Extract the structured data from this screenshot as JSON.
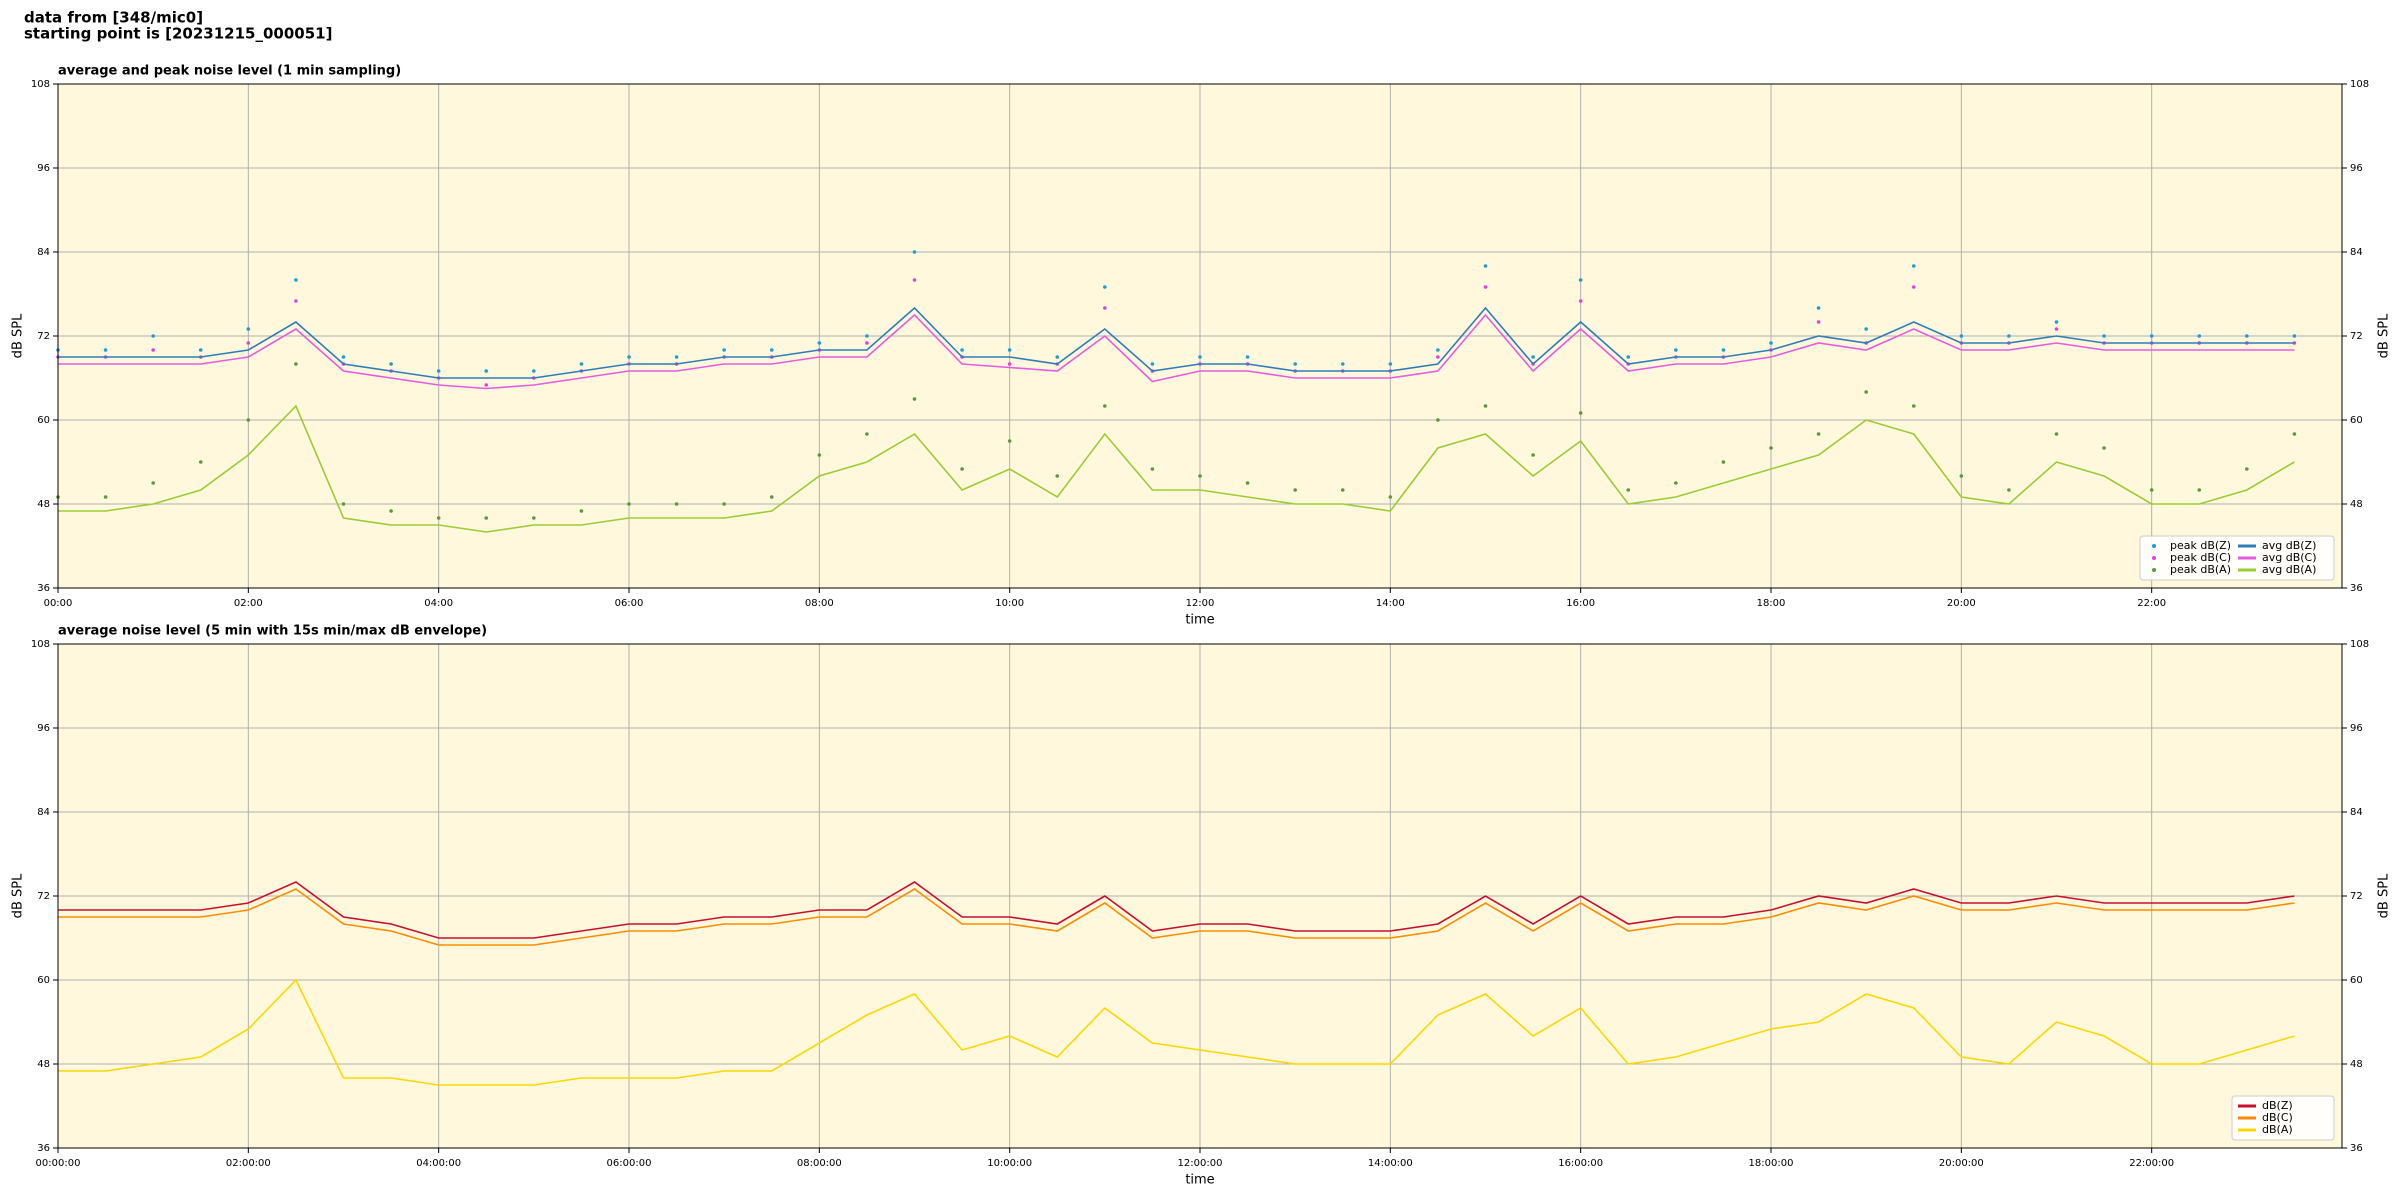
{
  "header": {
    "source": "data from [348/mic0]",
    "start": "starting point is [20231215_000051]"
  },
  "chart_data": [
    {
      "type": "mixed",
      "title": "average and peak noise level (1 min sampling)",
      "xlabel": "time",
      "ylabel": "dB SPL",
      "background": "#fff8dc",
      "grid": true,
      "legend": "lower right",
      "legend_columns": 2,
      "xlim": [
        0,
        24
      ],
      "ylim": [
        36,
        108
      ],
      "yticks": [
        36,
        48,
        60,
        72,
        84,
        96,
        108
      ],
      "xticks": [
        {
          "value": 0,
          "label": "00:00"
        },
        {
          "value": 2,
          "label": "02:00"
        },
        {
          "value": 4,
          "label": "04:00"
        },
        {
          "value": 6,
          "label": "06:00"
        },
        {
          "value": 8,
          "label": "08:00"
        },
        {
          "value": 10,
          "label": "10:00"
        },
        {
          "value": 12,
          "label": "12:00"
        },
        {
          "value": 14,
          "label": "14:00"
        },
        {
          "value": 16,
          "label": "16:00"
        },
        {
          "value": 18,
          "label": "18:00"
        },
        {
          "value": 20,
          "label": "20:00"
        },
        {
          "value": 22,
          "label": "22:00"
        }
      ],
      "x": [
        0,
        0.5,
        1,
        1.5,
        2,
        2.5,
        3,
        3.5,
        4,
        4.5,
        5,
        5.5,
        6,
        6.5,
        7,
        7.5,
        8,
        8.5,
        9,
        9.5,
        10,
        10.5,
        11,
        11.5,
        12,
        12.5,
        13,
        13.5,
        14,
        14.5,
        15,
        15.5,
        16,
        16.5,
        17,
        17.5,
        18,
        18.5,
        19,
        19.5,
        20,
        20.5,
        21,
        21.5,
        22,
        22.5,
        23,
        23.5
      ],
      "series": [
        {
          "name": "peak dB(Z)",
          "kind": "scatter",
          "color": "#1f9bd6",
          "values": [
            70,
            70,
            72,
            70,
            73,
            80,
            69,
            68,
            67,
            67,
            67,
            68,
            69,
            69,
            70,
            70,
            71,
            72,
            84,
            70,
            70,
            69,
            79,
            68,
            69,
            69,
            68,
            68,
            68,
            70,
            82,
            69,
            80,
            69,
            70,
            70,
            71,
            76,
            73,
            82,
            72,
            72,
            74,
            72,
            72,
            72,
            72,
            72
          ]
        },
        {
          "name": "peak dB(C)",
          "kind": "scatter",
          "color": "#e040e0",
          "values": [
            69,
            69,
            70,
            69,
            71,
            77,
            68,
            67,
            66,
            65,
            66,
            67,
            68,
            68,
            69,
            69,
            70,
            71,
            80,
            69,
            68,
            68,
            76,
            67,
            68,
            68,
            67,
            67,
            67,
            69,
            79,
            68,
            77,
            68,
            69,
            69,
            70,
            74,
            71,
            79,
            71,
            71,
            73,
            71,
            71,
            71,
            71,
            71
          ]
        },
        {
          "name": "peak dB(A)",
          "kind": "scatter",
          "color": "#5a9a3a",
          "values": [
            49,
            49,
            51,
            54,
            60,
            68,
            48,
            47,
            46,
            46,
            46,
            47,
            48,
            48,
            48,
            49,
            55,
            58,
            63,
            53,
            57,
            52,
            62,
            53,
            52,
            51,
            50,
            50,
            49,
            60,
            62,
            55,
            61,
            50,
            51,
            54,
            56,
            58,
            64,
            62,
            52,
            50,
            58,
            56,
            50,
            50,
            53,
            58
          ]
        },
        {
          "name": "avg dB(Z)",
          "kind": "line",
          "color": "#2e7db8",
          "values": [
            69,
            69,
            69,
            69,
            70,
            74,
            68,
            67,
            66,
            66,
            66,
            67,
            68,
            68,
            69,
            69,
            70,
            70,
            76,
            69,
            69,
            68,
            73,
            67,
            68,
            68,
            67,
            67,
            67,
            68,
            76,
            68,
            74,
            68,
            69,
            69,
            70,
            72,
            71,
            74,
            71,
            71,
            72,
            71,
            71,
            71,
            71,
            71
          ]
        },
        {
          "name": "avg dB(C)",
          "kind": "line",
          "color": "#e65ce0",
          "values": [
            68,
            68,
            68,
            68,
            69,
            73,
            67,
            66,
            65,
            64.5,
            65,
            66,
            67,
            67,
            68,
            68,
            69,
            69,
            75,
            68,
            67.5,
            67,
            72,
            65.5,
            67,
            67,
            66,
            66,
            66,
            67,
            75,
            67,
            73,
            67,
            68,
            68,
            69,
            71,
            70,
            73,
            70,
            70,
            71,
            70,
            70,
            70,
            70,
            70
          ]
        },
        {
          "name": "avg dB(A)",
          "kind": "line",
          "color": "#9acd32",
          "values": [
            47,
            47,
            48,
            50,
            55,
            62,
            46,
            45,
            45,
            44,
            45,
            45,
            46,
            46,
            46,
            47,
            52,
            54,
            58,
            50,
            53,
            49,
            58,
            50,
            50,
            49,
            48,
            48,
            47,
            56,
            58,
            52,
            57,
            48,
            49,
            51,
            53,
            55,
            60,
            58,
            49,
            48,
            54,
            52,
            48,
            48,
            50,
            54
          ]
        }
      ]
    },
    {
      "type": "line",
      "title": "average noise level (5 min with 15s min/max dB envelope)",
      "xlabel": "time",
      "ylabel": "dB SPL",
      "background": "#fff8dc",
      "grid": true,
      "legend": "lower right",
      "legend_columns": 1,
      "xlim": [
        0,
        24
      ],
      "ylim": [
        36,
        108
      ],
      "yticks": [
        36,
        48,
        60,
        72,
        84,
        96,
        108
      ],
      "xticks": [
        {
          "value": 0,
          "label": "00:00:00"
        },
        {
          "value": 2,
          "label": "02:00:00"
        },
        {
          "value": 4,
          "label": "04:00:00"
        },
        {
          "value": 6,
          "label": "06:00:00"
        },
        {
          "value": 8,
          "label": "08:00:00"
        },
        {
          "value": 10,
          "label": "10:00:00"
        },
        {
          "value": 12,
          "label": "12:00:00"
        },
        {
          "value": 14,
          "label": "14:00:00"
        },
        {
          "value": 16,
          "label": "16:00:00"
        },
        {
          "value": 18,
          "label": "18:00:00"
        },
        {
          "value": 20,
          "label": "20:00:00"
        },
        {
          "value": 22,
          "label": "22:00:00"
        }
      ],
      "x": [
        0,
        0.5,
        1,
        1.5,
        2,
        2.5,
        3,
        3.5,
        4,
        4.5,
        5,
        5.5,
        6,
        6.5,
        7,
        7.5,
        8,
        8.5,
        9,
        9.5,
        10,
        10.5,
        11,
        11.5,
        12,
        12.5,
        13,
        13.5,
        14,
        14.5,
        15,
        15.5,
        16,
        16.5,
        17,
        17.5,
        18,
        18.5,
        19,
        19.5,
        20,
        20.5,
        21,
        21.5,
        22,
        22.5,
        23,
        23.5
      ],
      "series": [
        {
          "name": "dB(Z)",
          "kind": "line",
          "color": "#c8102e",
          "values": [
            70,
            70,
            70,
            70,
            71,
            74,
            69,
            68,
            66,
            66,
            66,
            67,
            68,
            68,
            69,
            69,
            70,
            70,
            74,
            69,
            69,
            68,
            72,
            67,
            68,
            68,
            67,
            67,
            67,
            68,
            72,
            68,
            72,
            68,
            69,
            69,
            70,
            72,
            71,
            73,
            71,
            71,
            72,
            71,
            71,
            71,
            71,
            72
          ]
        },
        {
          "name": "dB(C)",
          "kind": "line",
          "color": "#ff8c00",
          "values": [
            69,
            69,
            69,
            69,
            70,
            73,
            68,
            67,
            65,
            65,
            65,
            66,
            67,
            67,
            68,
            68,
            69,
            69,
            73,
            68,
            68,
            67,
            71,
            66,
            67,
            67,
            66,
            66,
            66,
            67,
            71,
            67,
            71,
            67,
            68,
            68,
            69,
            71,
            70,
            72,
            70,
            70,
            71,
            70,
            70,
            70,
            70,
            71
          ]
        },
        {
          "name": "dB(A)",
          "kind": "line",
          "color": "#ffd700",
          "values": [
            47,
            47,
            48,
            49,
            53,
            60,
            46,
            46,
            45,
            45,
            45,
            46,
            46,
            46,
            47,
            47,
            51,
            55,
            58,
            50,
            52,
            49,
            56,
            51,
            50,
            49,
            48,
            48,
            48,
            55,
            58,
            52,
            56,
            48,
            49,
            51,
            53,
            54,
            58,
            56,
            49,
            48,
            54,
            52,
            48,
            48,
            50,
            52
          ]
        }
      ]
    }
  ]
}
